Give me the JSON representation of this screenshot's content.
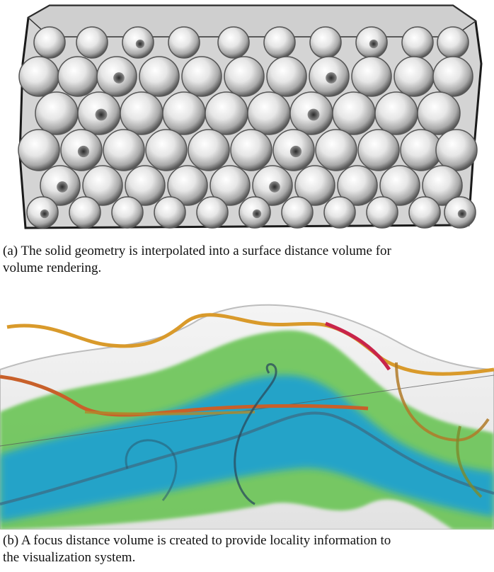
{
  "subfigures": [
    {
      "id": "a",
      "caption_lines": [
        "(a)  The solid geometry is interpolated into a surface distance volume for",
        "volume rendering."
      ],
      "colors": {
        "surface": "#e8e8e8",
        "shadow": "#6e6e6e",
        "edge": "#1a1a1a"
      }
    },
    {
      "id": "b",
      "caption_lines": [
        "(b)  A focus distance volume is created to provide locality information to",
        "the visualization system."
      ],
      "colors": {
        "green": "#5cc24a",
        "blue": "#1f9fd2",
        "tube_orange": "#d99a2b",
        "tube_red": "#c8244a",
        "haze": "#d9d9d9"
      }
    }
  ]
}
